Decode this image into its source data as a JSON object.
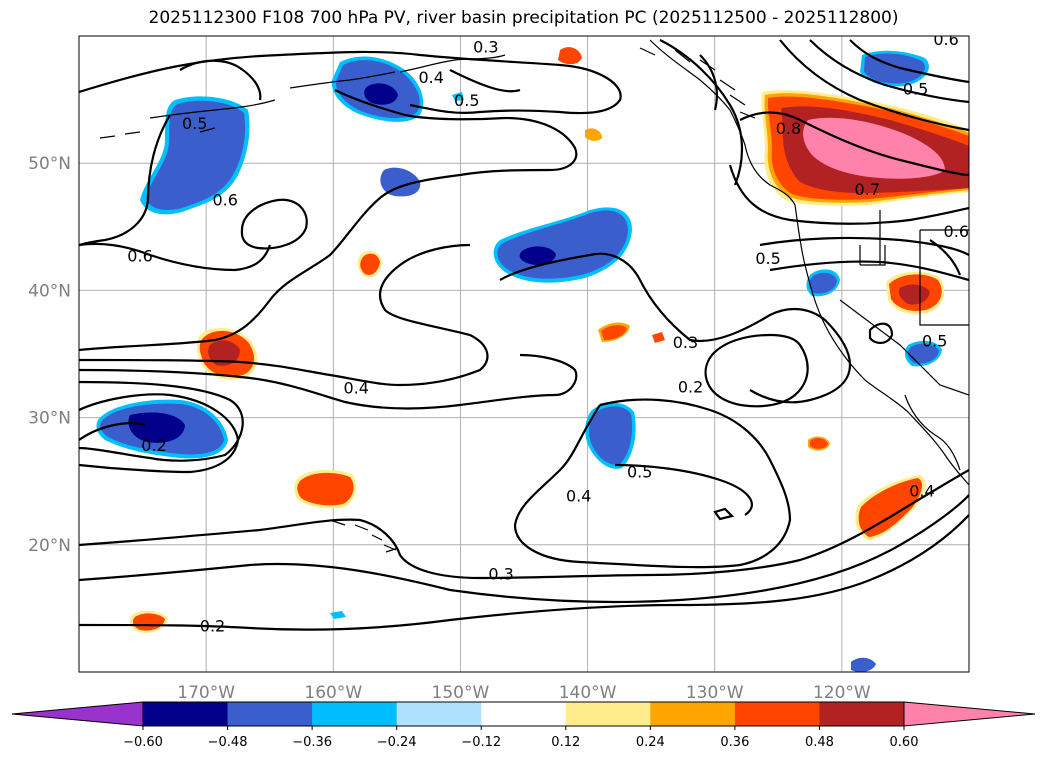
{
  "title": "2025112300 F108 700 hPa PV, river basin precipitation PC (2025112500 - 2025112800)",
  "map": {
    "lon_range": [
      -180,
      -110
    ],
    "lat_range": [
      10,
      60
    ],
    "lat_labels": [
      {
        "lat": 50,
        "text": "50°N"
      },
      {
        "lat": 40,
        "text": "40°N"
      },
      {
        "lat": 30,
        "text": "30°N"
      },
      {
        "lat": 20,
        "text": "20°N"
      }
    ],
    "lon_labels": [
      {
        "lon": -170,
        "text": "170°W"
      },
      {
        "lon": -160,
        "text": "160°W"
      },
      {
        "lon": -150,
        "text": "150°W"
      },
      {
        "lon": -140,
        "text": "140°W"
      },
      {
        "lon": -130,
        "text": "130°W"
      },
      {
        "lon": -120,
        "text": "120°W"
      }
    ],
    "grid_color": "#b0b0b0",
    "contour_labels": [
      {
        "text": "0.3",
        "lon": -148.0,
        "lat": 59.0
      },
      {
        "text": "0.4",
        "lon": -152.3,
        "lat": 56.6
      },
      {
        "text": "0.5",
        "lon": -149.5,
        "lat": 54.8
      },
      {
        "text": "0.5",
        "lon": -170.9,
        "lat": 53.0
      },
      {
        "text": "0.6",
        "lon": -168.5,
        "lat": 47.0
      },
      {
        "text": "0.6",
        "lon": -175.2,
        "lat": 42.6
      },
      {
        "text": "0.4",
        "lon": -158.2,
        "lat": 32.2
      },
      {
        "text": "0.2",
        "lon": -174.1,
        "lat": 27.7
      },
      {
        "text": "0.3",
        "lon": -132.3,
        "lat": 35.8
      },
      {
        "text": "0.2",
        "lon": -131.9,
        "lat": 32.3
      },
      {
        "text": "0.4",
        "lon": -140.7,
        "lat": 23.7
      },
      {
        "text": "0.5",
        "lon": -135.9,
        "lat": 25.6
      },
      {
        "text": "0.3",
        "lon": -146.8,
        "lat": 17.6
      },
      {
        "text": "0.2",
        "lon": -169.5,
        "lat": 13.5
      },
      {
        "text": "0.5",
        "lon": -125.8,
        "lat": 42.4
      },
      {
        "text": "0.8",
        "lon": -124.2,
        "lat": 52.6
      },
      {
        "text": "0.7",
        "lon": -118.0,
        "lat": 47.8
      },
      {
        "text": "0.5",
        "lon": -114.2,
        "lat": 55.7
      },
      {
        "text": "0.6",
        "lon": -111.8,
        "lat": 59.6
      },
      {
        "text": "0.6",
        "lon": -111.0,
        "lat": 44.5
      },
      {
        "text": "0.4",
        "lon": -113.7,
        "lat": 24.1
      },
      {
        "text": "0.5",
        "lon": -112.7,
        "lat": 35.9
      }
    ]
  },
  "colorbar": {
    "colors": [
      "#9933cc",
      "#00008b",
      "#3a5fcd",
      "#00bfff",
      "#b0e2ff",
      "#ffffff",
      "#ffec8b",
      "#ffa500",
      "#ff4500",
      "#b22222",
      "#ff82ab",
      "#ff82ab"
    ],
    "tick_labels": [
      "−0.60",
      "−0.48",
      "−0.36",
      "−0.24",
      "−0.12",
      "0.12",
      "0.24",
      "0.36",
      "0.48",
      "0.60"
    ]
  }
}
